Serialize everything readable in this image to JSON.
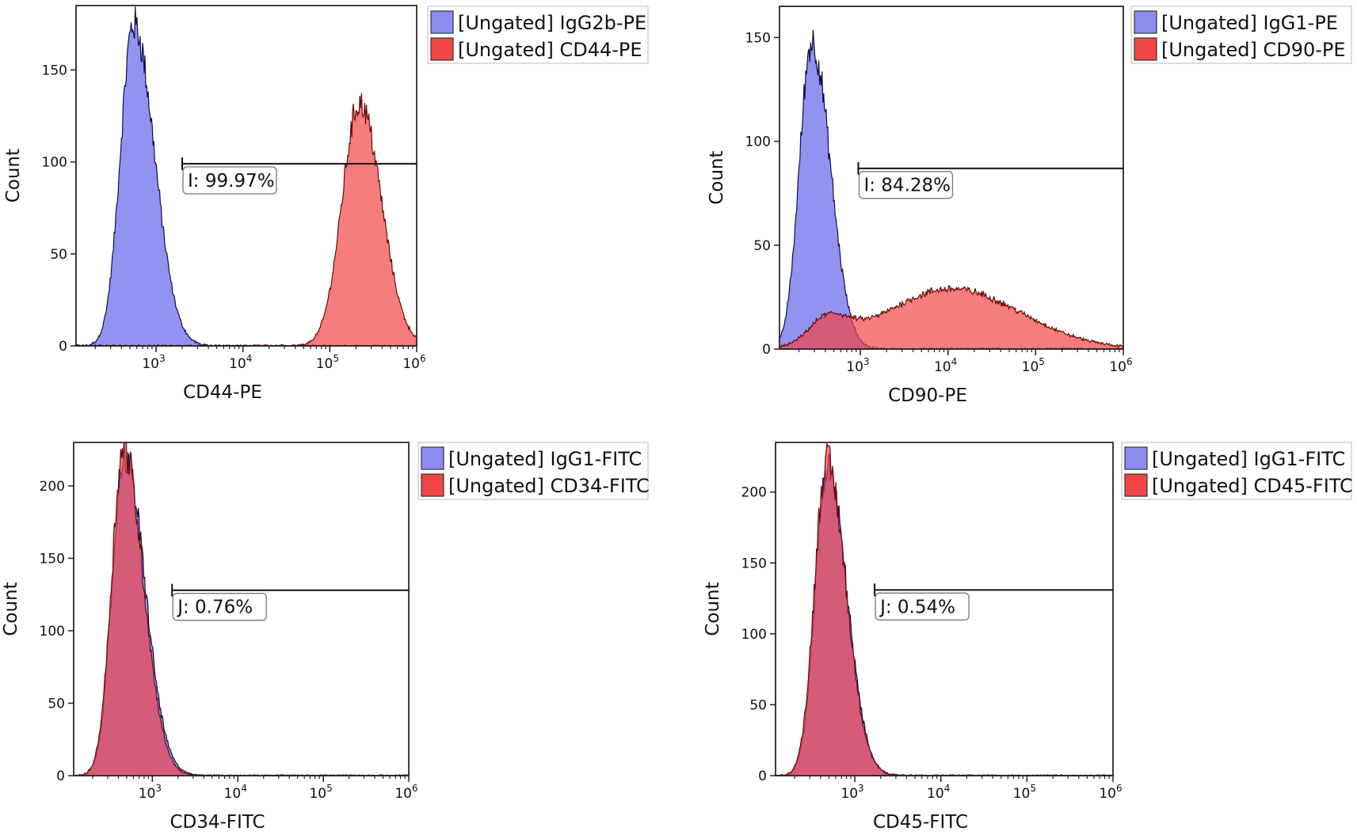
{
  "chart_data": [
    {
      "type": "histogram",
      "panel": "top-left",
      "xlabel": "CD44-PE",
      "ylabel": "Count",
      "x_scale": "log",
      "xlim": [
        120,
        1000000
      ],
      "ylim": [
        0,
        185
      ],
      "y_ticks": [
        0,
        50,
        100,
        150
      ],
      "x_ticks": [
        {
          "value": 1000,
          "base": "10",
          "exp": "3"
        },
        {
          "value": 10000,
          "base": "10",
          "exp": "4"
        },
        {
          "value": 100000,
          "base": "10",
          "exp": "5"
        },
        {
          "value": 1000000,
          "base": "10",
          "exp": "6"
        }
      ],
      "legend": [
        {
          "label": "[Ungated] IgG2b-PE",
          "color": "#8c8cf0"
        },
        {
          "label": "[Ungated] CD44-PE",
          "color": "#f24646"
        }
      ],
      "legend_position": "outside-top-right",
      "gate": {
        "label": "I: 99.97%",
        "x_start": 2000,
        "x_end": 1000000,
        "y": 99
      },
      "series": [
        {
          "name": "[Ungated] IgG2b-PE",
          "color": "#8c8cf0",
          "edge": "#10104a",
          "peaks": [
            {
              "center": 550,
              "sigma_decades": 0.15,
              "height": 175,
              "right_skew": 1.6
            }
          ]
        },
        {
          "name": "[Ungated] CD44-PE",
          "color": "#f24646",
          "edge": "#6a0d0d",
          "peaks": [
            {
              "center": 220000,
              "sigma_decades": 0.2,
              "height": 132,
              "right_skew": 1.25
            }
          ]
        }
      ]
    },
    {
      "type": "histogram",
      "panel": "top-right",
      "xlabel": "CD90-PE",
      "ylabel": "Count",
      "x_scale": "log",
      "xlim": [
        120,
        1000000
      ],
      "ylim": [
        0,
        165
      ],
      "y_ticks": [
        0,
        50,
        100,
        150
      ],
      "x_ticks": [
        {
          "value": 1000,
          "base": "10",
          "exp": "3"
        },
        {
          "value": 10000,
          "base": "10",
          "exp": "4"
        },
        {
          "value": 100000,
          "base": "10",
          "exp": "5"
        },
        {
          "value": 1000000,
          "base": "10",
          "exp": "6"
        }
      ],
      "legend": [
        {
          "label": "[Ungated] IgG1-PE",
          "color": "#8c8cf0"
        },
        {
          "label": "[Ungated] CD90-PE",
          "color": "#f24646"
        }
      ],
      "legend_position": "outside-top-right",
      "gate": {
        "label": "I: 84.28%",
        "x_start": 950,
        "x_end": 1000000,
        "y": 87
      },
      "series": [
        {
          "name": "[Ungated] IgG1-PE",
          "color": "#8c8cf0",
          "edge": "#10104a",
          "peaks": [
            {
              "center": 280,
              "sigma_decades": 0.14,
              "height": 148,
              "right_skew": 1.5
            }
          ]
        },
        {
          "name": "[Ungated] CD90-PE",
          "color": "#f24646",
          "edge": "#6a0d0d",
          "peaks": [
            {
              "center": 420,
              "sigma_decades": 0.2,
              "height": 12,
              "right_skew": 1.2
            },
            {
              "center": 11000,
              "sigma_decades": 0.75,
              "height": 29,
              "right_skew": 1.05
            }
          ]
        }
      ]
    },
    {
      "type": "histogram",
      "panel": "bottom-left",
      "xlabel": "CD34-FITC",
      "ylabel": "Count",
      "x_scale": "log",
      "xlim": [
        120,
        1000000
      ],
      "ylim": [
        0,
        230
      ],
      "y_ticks": [
        0,
        50,
        100,
        150,
        200
      ],
      "x_ticks": [
        {
          "value": 1000,
          "base": "10",
          "exp": "3"
        },
        {
          "value": 10000,
          "base": "10",
          "exp": "4"
        },
        {
          "value": 100000,
          "base": "10",
          "exp": "5"
        },
        {
          "value": 1000000,
          "base": "10",
          "exp": "6"
        }
      ],
      "legend": [
        {
          "label": "[Ungated] IgG1-FITC",
          "color": "#8c8cf0"
        },
        {
          "label": "[Ungated] CD34-FITC",
          "color": "#f24646"
        }
      ],
      "legend_position": "outside-top-right",
      "gate": {
        "label": "J: 0.76%",
        "x_start": 1700,
        "x_end": 1000000,
        "y": 128
      },
      "series": [
        {
          "name": "[Ungated] IgG1-FITC",
          "color": "#8c8cf0",
          "edge": "#10104a",
          "peaks": [
            {
              "center": 470,
              "sigma_decades": 0.14,
              "height": 222,
              "right_skew": 1.7
            }
          ]
        },
        {
          "name": "[Ungated] CD34-FITC",
          "color": "#f24646",
          "edge": "#6a0d0d",
          "peaks": [
            {
              "center": 460,
              "sigma_decades": 0.14,
              "height": 225,
              "right_skew": 1.65
            }
          ]
        }
      ]
    },
    {
      "type": "histogram",
      "panel": "bottom-right",
      "xlabel": "CD45-FITC",
      "ylabel": "Count",
      "x_scale": "log",
      "xlim": [
        120,
        1000000
      ],
      "ylim": [
        0,
        235
      ],
      "y_ticks": [
        0,
        50,
        100,
        150,
        200
      ],
      "x_ticks": [
        {
          "value": 1000,
          "base": "10",
          "exp": "3"
        },
        {
          "value": 10000,
          "base": "10",
          "exp": "4"
        },
        {
          "value": 100000,
          "base": "10",
          "exp": "5"
        },
        {
          "value": 1000000,
          "base": "10",
          "exp": "6"
        }
      ],
      "legend": [
        {
          "label": "[Ungated] IgG1-FITC",
          "color": "#8c8cf0"
        },
        {
          "label": "[Ungated] CD45-FITC",
          "color": "#f24646"
        }
      ],
      "legend_position": "outside-top-right",
      "gate": {
        "label": "J: 0.54%",
        "x_start": 1700,
        "x_end": 1000000,
        "y": 131
      },
      "series": [
        {
          "name": "[Ungated] IgG1-FITC",
          "color": "#8c8cf0",
          "edge": "#10104a",
          "peaks": [
            {
              "center": 480,
              "sigma_decades": 0.14,
              "height": 218,
              "right_skew": 1.6
            }
          ]
        },
        {
          "name": "[Ungated] CD45-FITC",
          "color": "#f24646",
          "edge": "#6a0d0d",
          "peaks": [
            {
              "center": 470,
              "sigma_decades": 0.14,
              "height": 222,
              "right_skew": 1.6
            }
          ]
        }
      ]
    }
  ]
}
